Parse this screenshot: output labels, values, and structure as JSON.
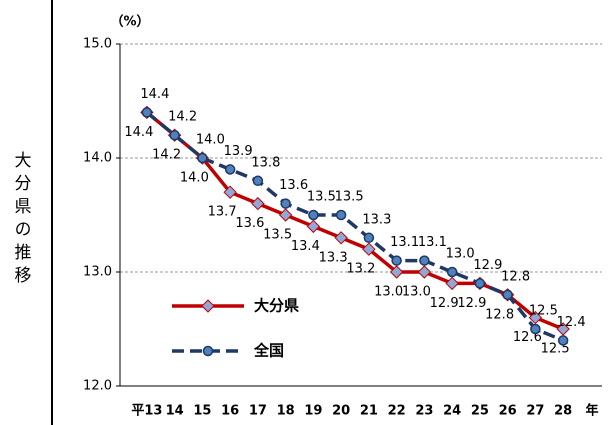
{
  "chart_data": {
    "type": "line",
    "y_label": "大分県の推移",
    "y_unit": "（%）",
    "x_unit": "年",
    "categories": [
      "平13",
      "14",
      "15",
      "16",
      "17",
      "18",
      "19",
      "20",
      "21",
      "22",
      "23",
      "24",
      "25",
      "26",
      "27",
      "28"
    ],
    "series": [
      {
        "name": "大分県",
        "color": "#c00000",
        "marker": "diamond",
        "marker_color": "#8fa8d8",
        "dash": false,
        "values": [
          14.4,
          14.2,
          14.0,
          13.7,
          13.6,
          13.5,
          13.4,
          13.3,
          13.2,
          13.0,
          13.0,
          12.9,
          12.9,
          12.8,
          12.6,
          12.5
        ],
        "value_labels": [
          "14.4",
          "14.2",
          "14.0",
          "13.7",
          "13.6",
          "13.5",
          "13.4",
          "13.3",
          "13.2",
          "13.0",
          "13.0",
          "12.9",
          "12.9",
          "12.8",
          "12.6",
          "12.5"
        ]
      },
      {
        "name": "全国",
        "color": "#1f3864",
        "marker": "circle",
        "marker_color": "#4f81bd",
        "dash": true,
        "values": [
          14.4,
          14.2,
          14.0,
          13.9,
          13.8,
          13.6,
          13.5,
          13.5,
          13.3,
          13.1,
          13.1,
          13.0,
          12.9,
          12.8,
          12.5,
          12.4
        ],
        "value_labels": [
          "14.4",
          "14.2",
          "14.0",
          "13.9",
          "13.8",
          "13.6",
          "13.5",
          "13.5",
          "13.3",
          "13.1",
          "13.1",
          "13.0",
          "12.9",
          "12.8",
          "12.5",
          "12.4"
        ]
      }
    ],
    "ylim": [
      12,
      15
    ],
    "yticks": [
      {
        "value": 12,
        "label": "12.0"
      },
      {
        "value": 13,
        "label": "13.0"
      },
      {
        "value": 14,
        "label": "14.0"
      },
      {
        "value": 15,
        "label": "15.0"
      }
    ],
    "grid": true,
    "legend": "lower left"
  }
}
